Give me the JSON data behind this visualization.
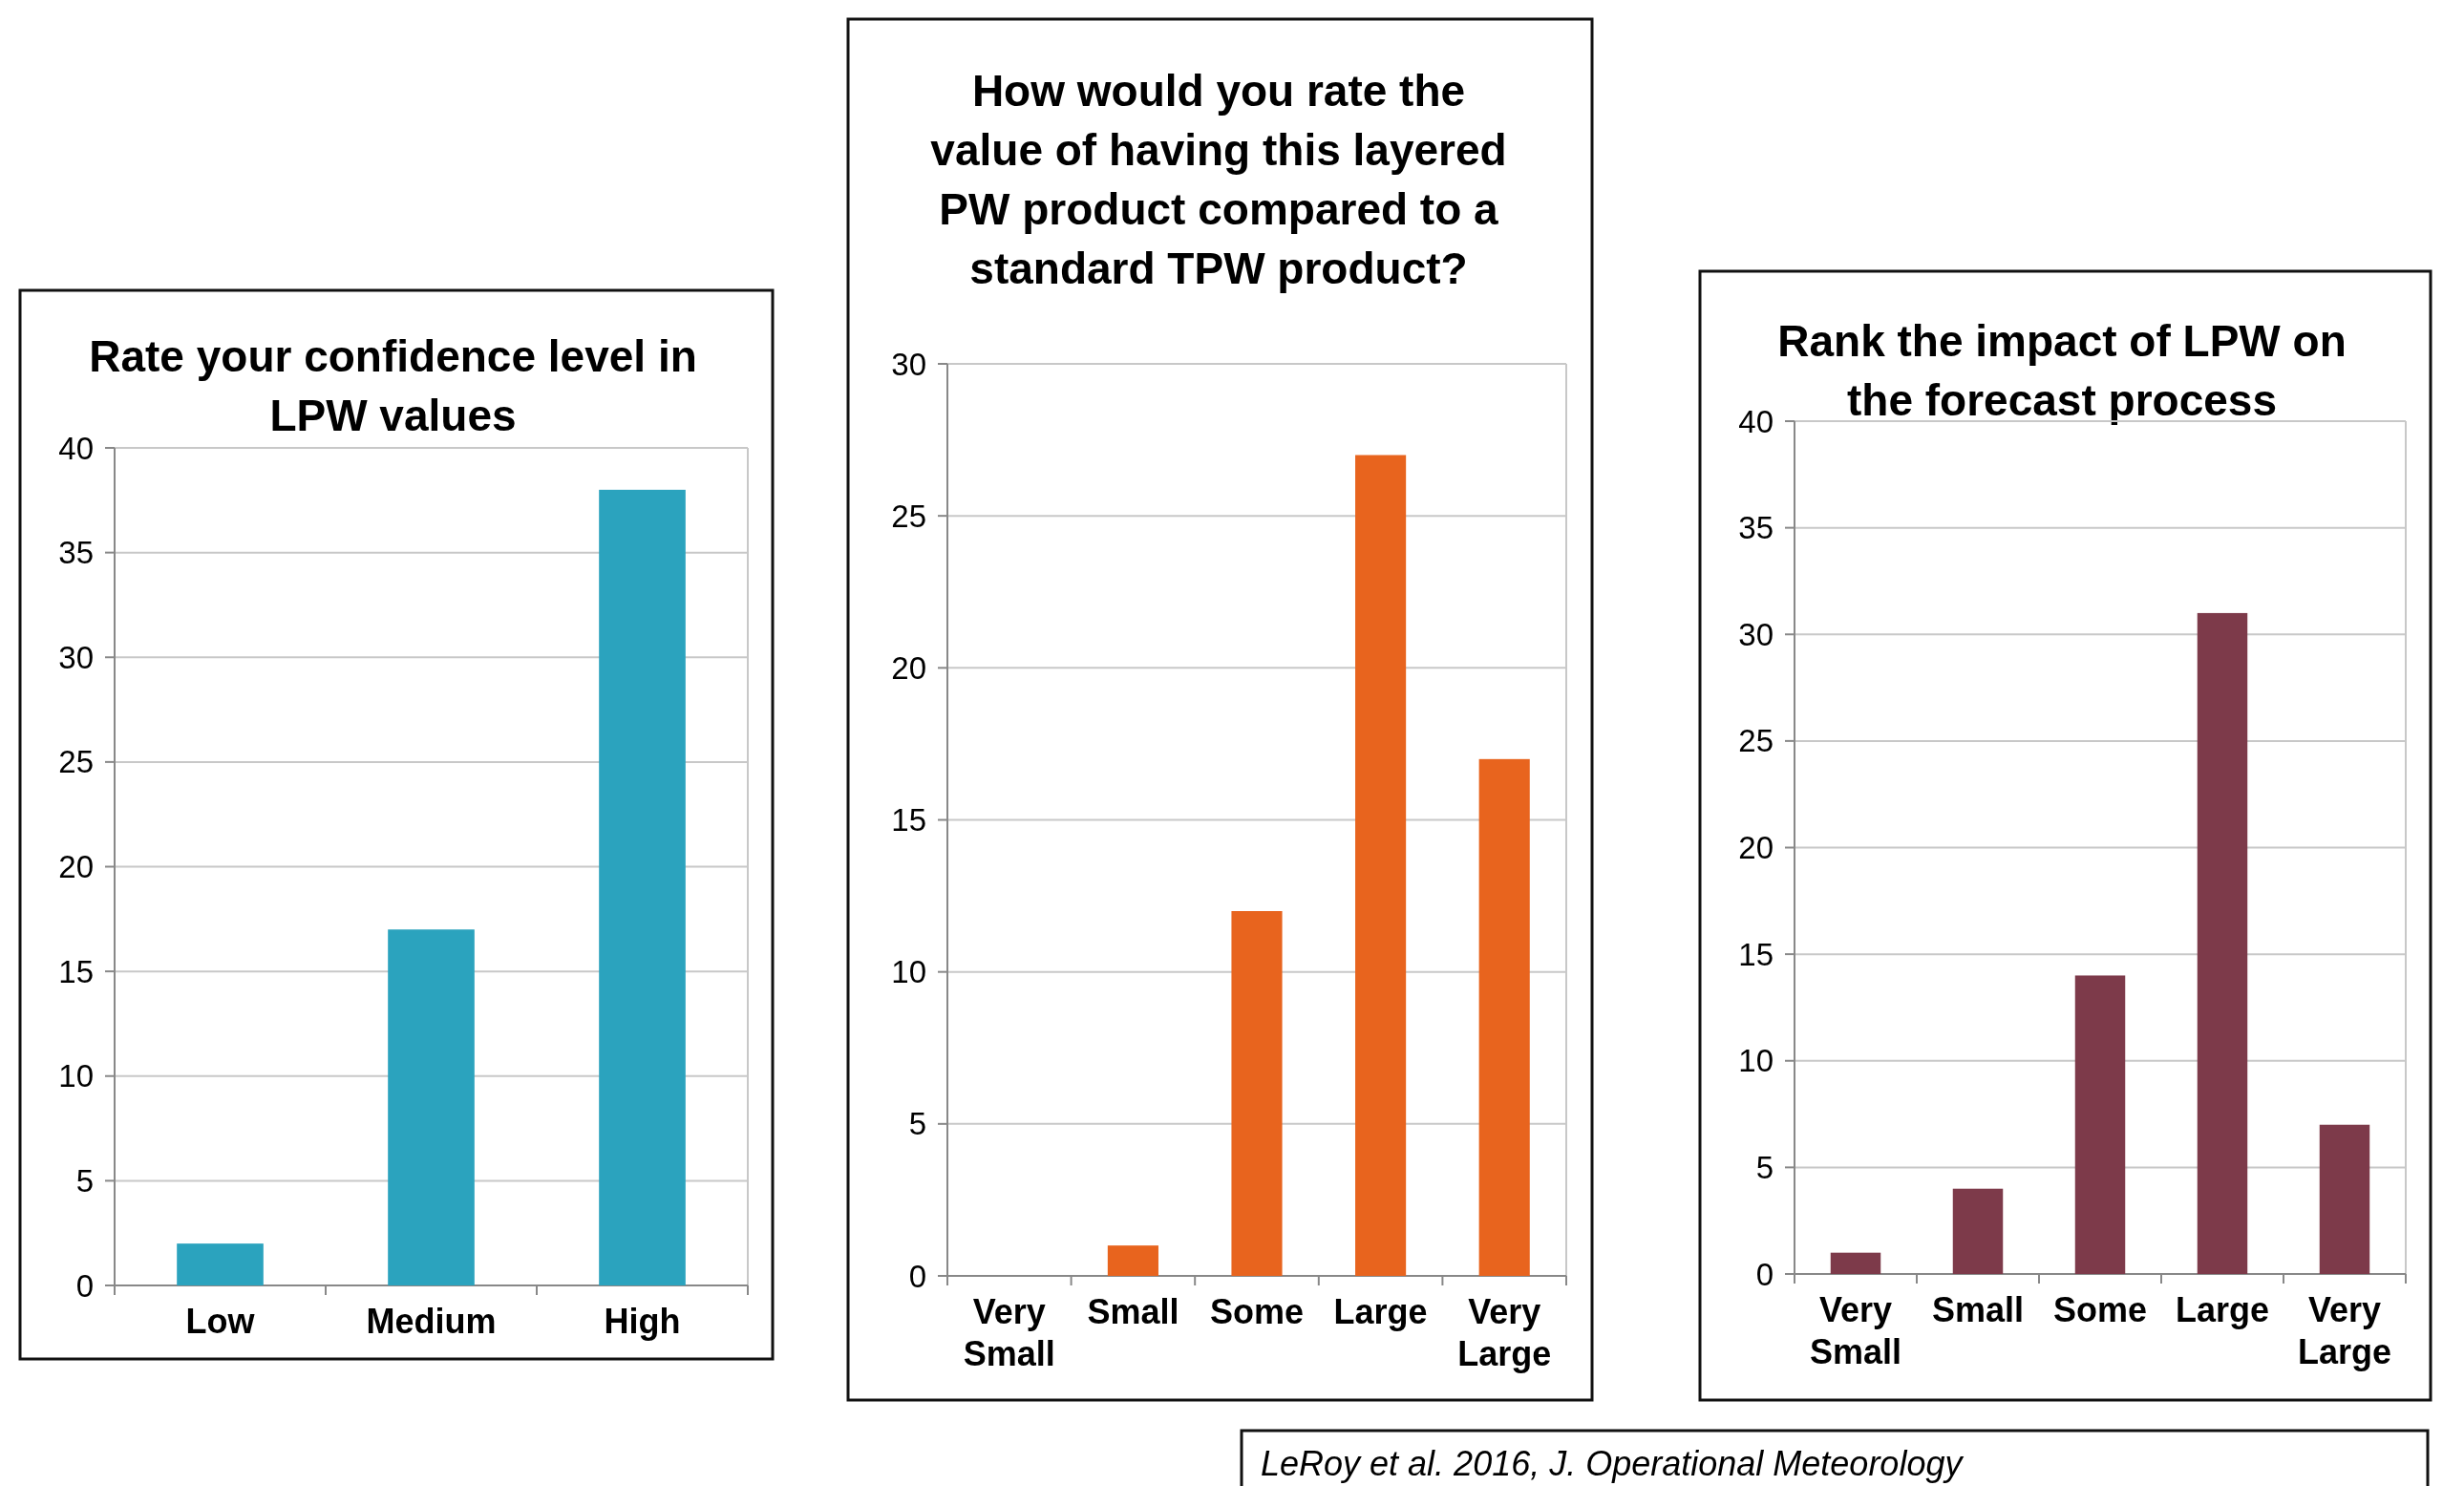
{
  "chart_data": [
    {
      "type": "bar",
      "title": "Rate your confidence level in LPW values",
      "categories": [
        "Low",
        "Medium",
        "High"
      ],
      "values": [
        2,
        17,
        38
      ],
      "color": "#2ba3be",
      "ylim": [
        0,
        40
      ],
      "yticks": [
        0,
        5,
        10,
        15,
        20,
        25,
        30,
        35,
        40
      ],
      "grid": "y"
    },
    {
      "type": "bar",
      "title": "How would you rate the value of having this layered PW product compared to a standard TPW product?",
      "categories": [
        "Very Small",
        "Small",
        "Some",
        "Large",
        "Very Large"
      ],
      "values": [
        0,
        1,
        12,
        27,
        17
      ],
      "color": "#e8641e",
      "ylim": [
        0,
        30
      ],
      "yticks": [
        0,
        5,
        10,
        15,
        20,
        25,
        30
      ],
      "grid": "y"
    },
    {
      "type": "bar",
      "title": "Rank the impact of LPW on the forecast process",
      "categories": [
        "Very Small",
        "Small",
        "Some",
        "Large",
        "Very Large"
      ],
      "values": [
        1,
        4,
        14,
        31,
        7
      ],
      "color": "#7d3a4a",
      "ylim": [
        0,
        40
      ],
      "yticks": [
        0,
        5,
        10,
        15,
        20,
        25,
        30,
        35,
        40
      ],
      "grid": "y",
      "annotations": [
        "LeRoy et al. 2016, J. Operational Meteorology"
      ]
    }
  ]
}
